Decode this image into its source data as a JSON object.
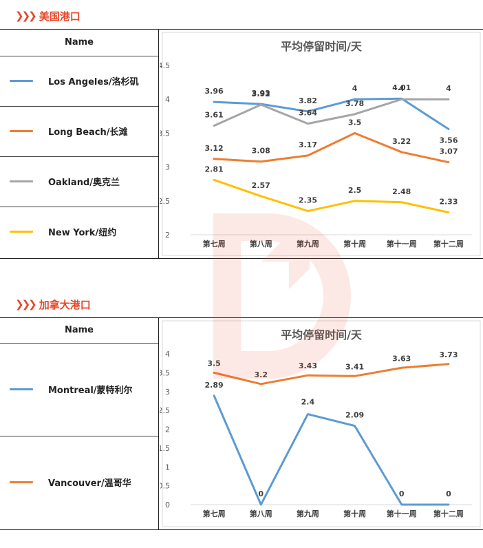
{
  "us": {
    "heading": "美国港口",
    "legend_header": "Name",
    "legend": [
      {
        "name": "Los Angeles/洛杉矶",
        "color": "#5b9bd5"
      },
      {
        "name": "Long Beach/长滩",
        "color": "#ed7d31"
      },
      {
        "name": "Oakland/奥克兰",
        "color": "#a5a5a5"
      },
      {
        "name": "New York/纽约",
        "color": "#ffc000"
      }
    ]
  },
  "ca": {
    "heading": "加拿大港口",
    "legend_header": "Name",
    "legend": [
      {
        "name": "Montreal/蒙特利尔",
        "color": "#5b9bd5"
      },
      {
        "name": "Vancouver/温哥华",
        "color": "#ed7d31"
      }
    ]
  },
  "chart_data": [
    {
      "type": "line",
      "title": "平均停留时间/天",
      "categories": [
        "第七周",
        "第八周",
        "第九周",
        "第十周",
        "第十一周",
        "第十二周"
      ],
      "ylim": [
        2,
        4.5
      ],
      "yticks": [
        2,
        2.5,
        3,
        3.5,
        4,
        4.5
      ],
      "ytick_labels": [
        "2",
        "2.5",
        "3",
        "3.5",
        "4",
        "4.5"
      ],
      "grid": false,
      "series": [
        {
          "name": "Los Angeles/洛杉矶",
          "color": "#5b9bd5",
          "values": [
            3.96,
            3.93,
            3.82,
            4,
            4.01,
            3.56
          ],
          "labels": [
            "3.96",
            "3.93",
            "3.82",
            "4",
            "4.01",
            "3.56"
          ]
        },
        {
          "name": "Long Beach/长滩",
          "color": "#ed7d31",
          "values": [
            3.12,
            3.08,
            3.17,
            3.5,
            3.22,
            3.07
          ],
          "labels": [
            "3.12",
            "3.08",
            "3.17",
            "3.5",
            "3.22",
            "3.07"
          ]
        },
        {
          "name": "Oakland/奥克兰",
          "color": "#a5a5a5",
          "values": [
            3.61,
            3.92,
            3.64,
            3.78,
            4,
            4
          ],
          "labels": [
            "3.61",
            "3.92",
            "3.64",
            "3.78",
            "4",
            "4"
          ]
        },
        {
          "name": "New York/纽约",
          "color": "#ffc000",
          "values": [
            2.81,
            2.57,
            2.35,
            2.5,
            2.48,
            2.33
          ],
          "labels": [
            "2.81",
            "2.57",
            "2.35",
            "2.5",
            "2.48",
            "2.33"
          ]
        }
      ]
    },
    {
      "type": "line",
      "title": "平均停留时间/天",
      "categories": [
        "第七周",
        "第八周",
        "第九周",
        "第十周",
        "第十一周",
        "第十二周"
      ],
      "ylim": [
        0,
        4
      ],
      "yticks": [
        0,
        0.5,
        1,
        1.5,
        2,
        2.5,
        3,
        3.5,
        4
      ],
      "ytick_labels": [
        "0",
        "0.5",
        "1",
        "1.5",
        "2",
        "2.5",
        "3",
        "3.5",
        "4"
      ],
      "grid": false,
      "series": [
        {
          "name": "Montreal/蒙特利尔",
          "color": "#5b9bd5",
          "values": [
            2.89,
            0,
            2.4,
            2.09,
            0,
            0
          ],
          "labels": [
            "2.89",
            "0",
            "2.4",
            "2.09",
            "0",
            "0"
          ]
        },
        {
          "name": "Vancouver/温哥华",
          "color": "#ed7d31",
          "values": [
            3.5,
            3.2,
            3.43,
            3.41,
            3.63,
            3.73
          ],
          "labels": [
            "3.5",
            "3.2",
            "3.43",
            "3.41",
            "3.63",
            "3.73"
          ]
        }
      ]
    }
  ]
}
